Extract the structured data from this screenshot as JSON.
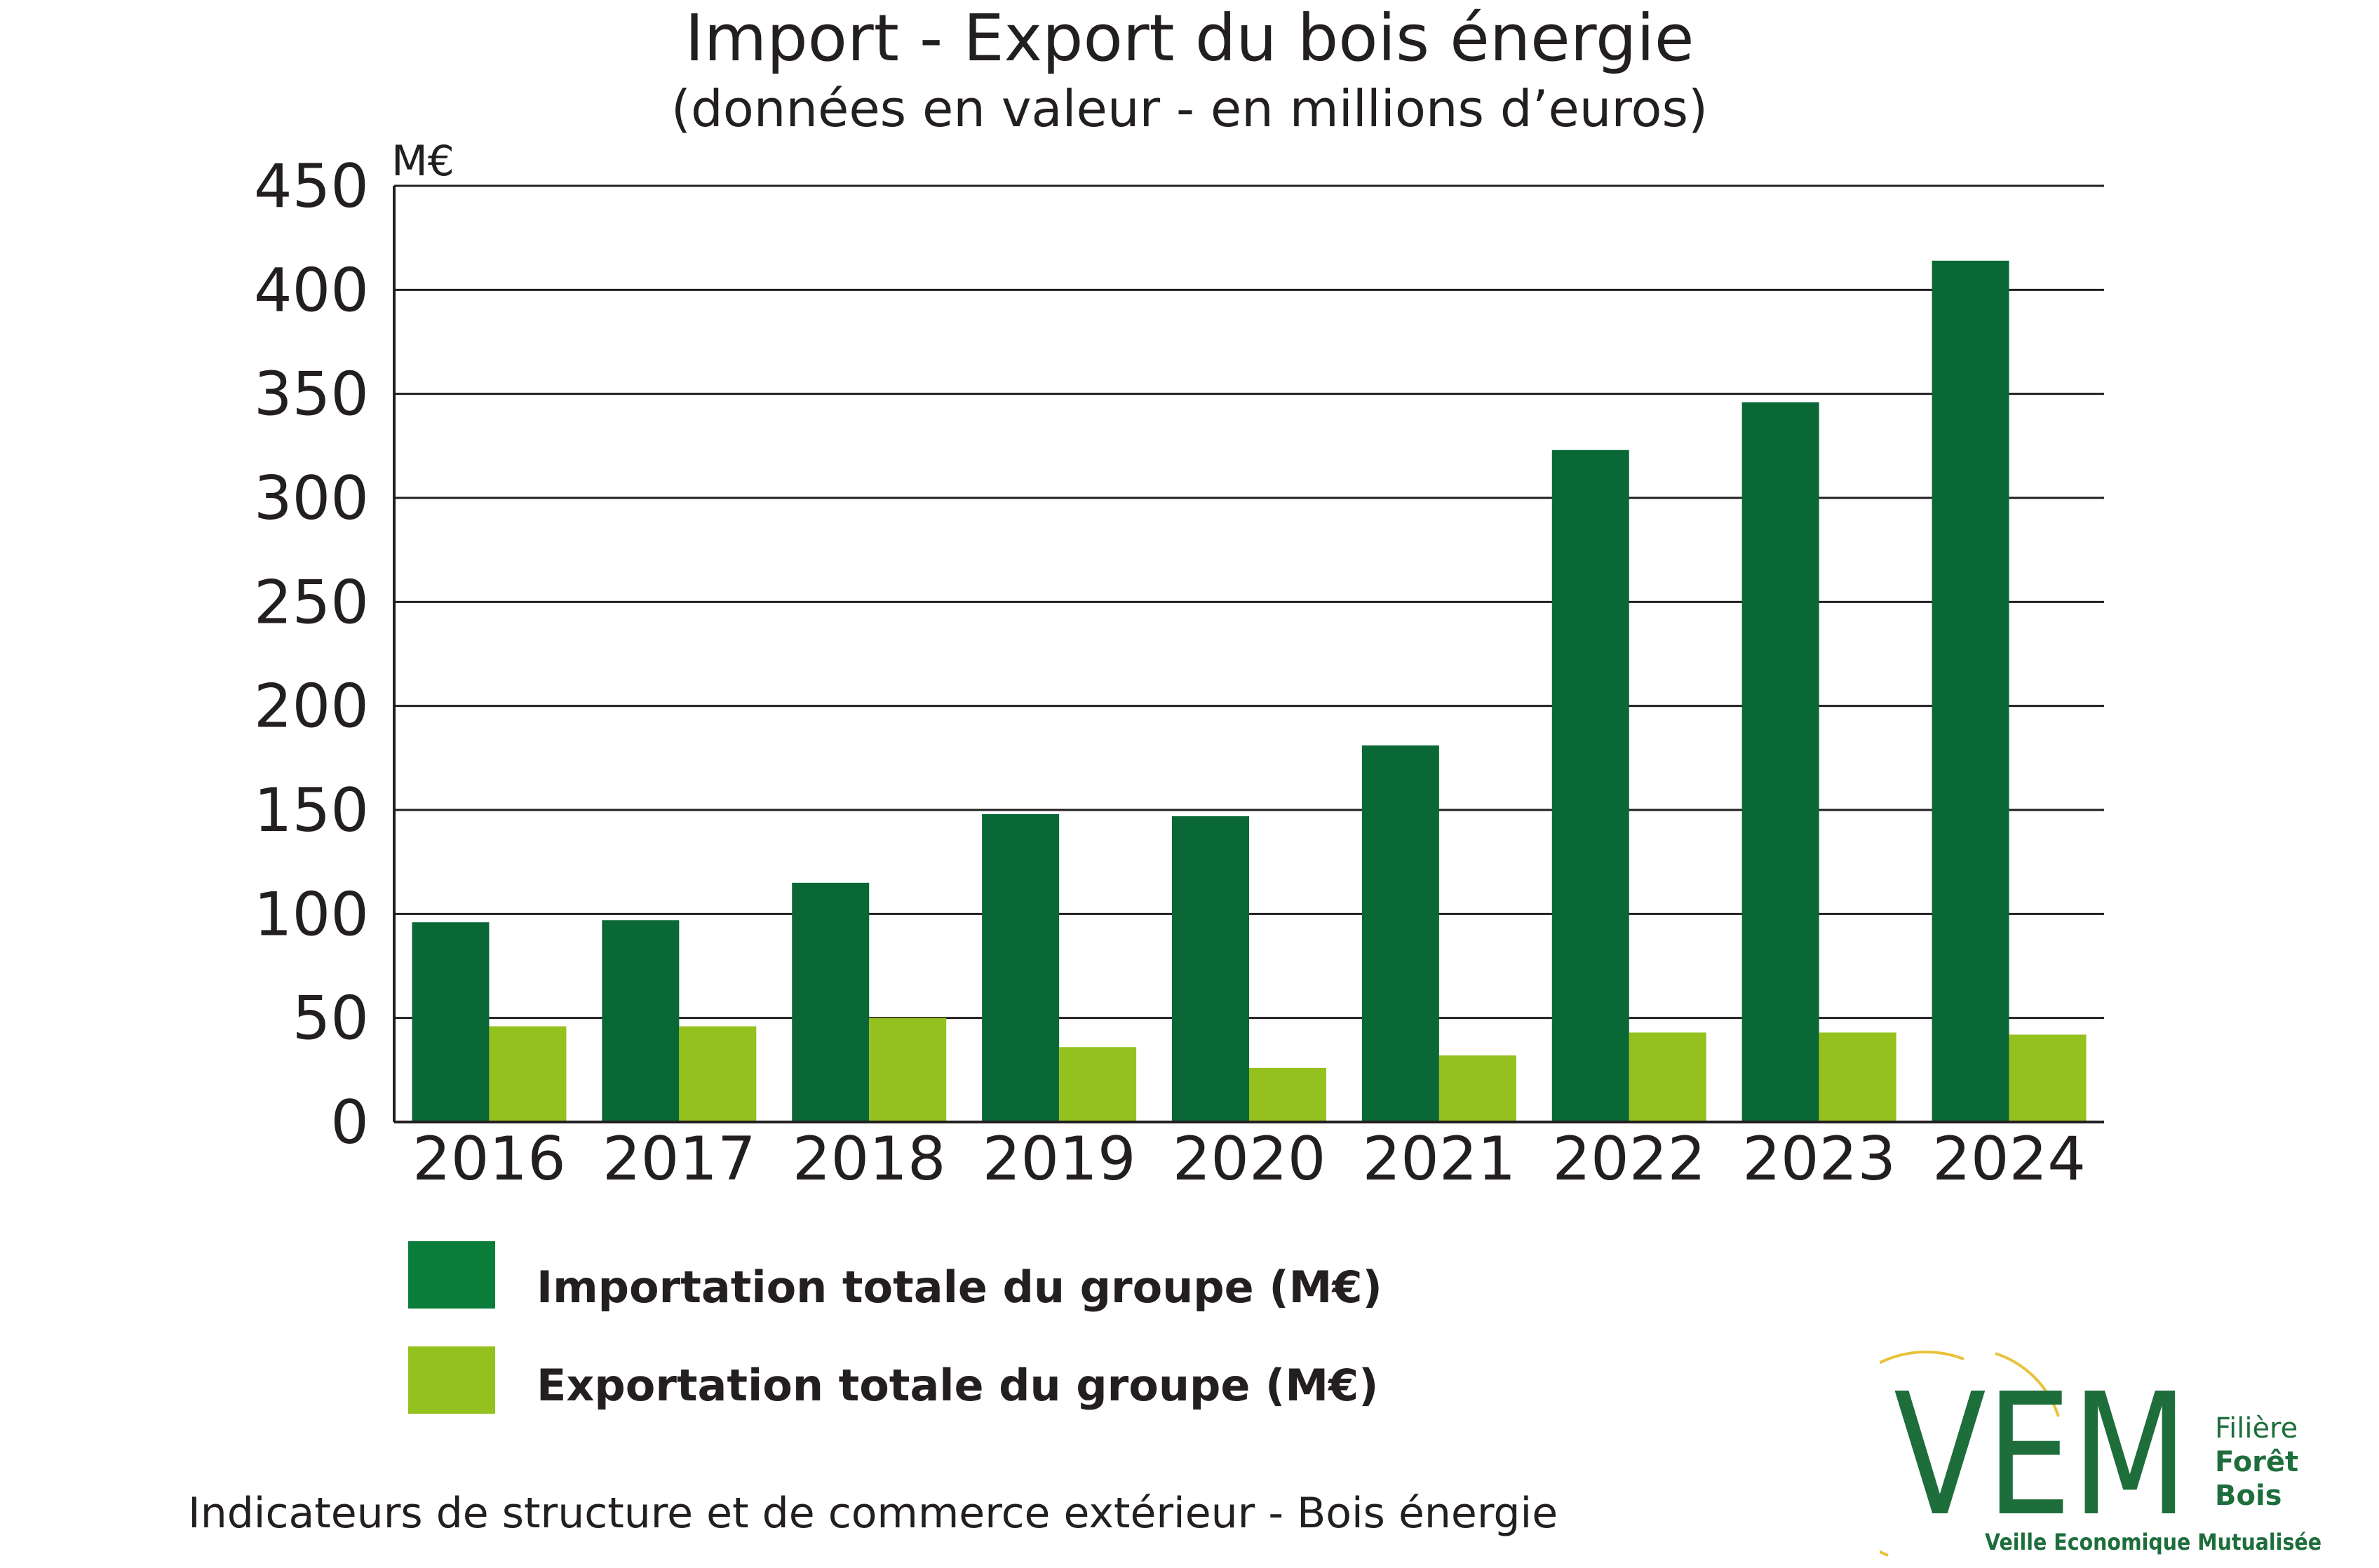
{
  "header": {
    "title": "Import - Export du bois énergie",
    "subtitle": "(données en valeur - en millions d’euros)"
  },
  "chart_data": {
    "type": "bar",
    "title": "Import - Export du bois énergie",
    "subtitle": "(données en valeur - en millions d’euros)",
    "xlabel": "",
    "ylabel": "M€",
    "ylim": [
      0,
      450
    ],
    "yticks": [
      0,
      50,
      100,
      150,
      200,
      250,
      300,
      350,
      400,
      450
    ],
    "grid": true,
    "legend_position": "bottom-left",
    "categories": [
      "2016",
      "2017",
      "2018",
      "2019",
      "2020",
      "2021",
      "2022",
      "2023",
      "2024"
    ],
    "series": [
      {
        "name": "Importation totale du groupe (M€)",
        "color": "#0a6837",
        "values": [
          96,
          97,
          115,
          148,
          147,
          181,
          323,
          346,
          414
        ]
      },
      {
        "name": "Exportation totale du groupe (M€)",
        "color": "#95c11f",
        "values": [
          46,
          46,
          50,
          36,
          26,
          32,
          43,
          43,
          42
        ]
      }
    ]
  },
  "legend": {
    "import_label": "Importation totale du groupe (M€)",
    "import_color": "#0a7d3a",
    "export_label": "Exportation totale du groupe (M€)",
    "export_color": "#95c11f"
  },
  "footer": {
    "text": "Indicateurs de structure et de commerce extérieur - Bois énergie"
  },
  "logo": {
    "letters": "VEM",
    "line1": "Filière",
    "line2": "Forêt",
    "line3": "Bois",
    "tagline": "Veille Economique Mutualisée",
    "color": "#1e6e3c",
    "arc_color": "#e8c23a"
  }
}
